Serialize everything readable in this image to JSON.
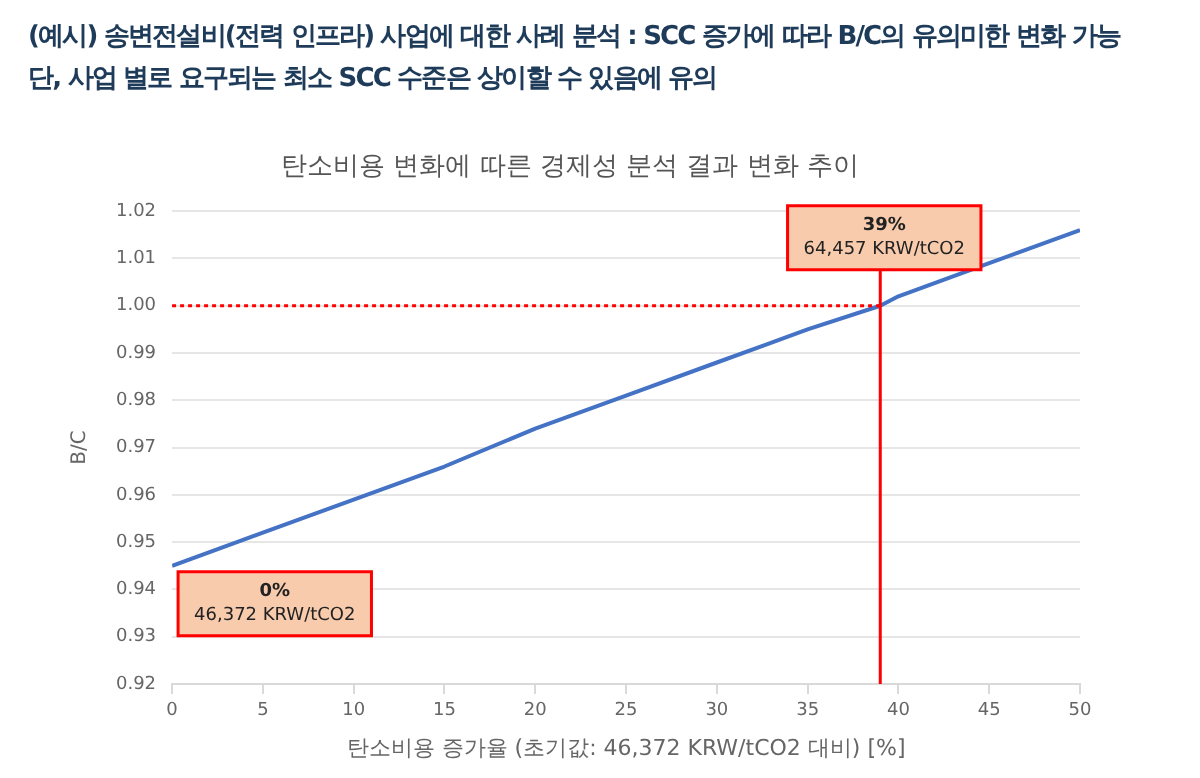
{
  "chart_data": {
    "type": "line",
    "title": "탄소비용 변화에 따른 경제성 분석 결과 변화 추이",
    "xlabel": "탄소비용 증가율 (초기값: 46,372 KRW/tCO2 대비) [%]",
    "ylabel": "B/C",
    "annotations": [
      "(예시) 송변전설비(전력 인프라) 사업에 대한 사례 분석 : SCC 증가에 따라 B/C의 유의미한 변화 가능",
      "단, 사업 별로 요구되는 최소 SCC 수준은 상이할 수 있음에 유의",
      {
        "text": "0%\n46,372 KRW/tCO2",
        "x": 0,
        "y": 0.945
      },
      {
        "text": "39%\n64,457 KRW/tCO2",
        "x": 39,
        "y": 1.0
      }
    ],
    "series": [
      {
        "color": "#4472c4",
        "x": [
          0,
          5,
          10,
          15,
          20,
          25,
          30,
          35,
          39,
          40,
          45,
          50
        ],
        "values": [
          0.945,
          0.952,
          0.959,
          0.966,
          0.974,
          0.981,
          0.988,
          0.995,
          1.0,
          1.002,
          1.009,
          1.016
        ]
      }
    ],
    "xlim": [
      0,
      50
    ],
    "xticks": [
      0,
      5,
      10,
      15,
      20,
      25,
      30,
      35,
      40,
      45,
      50
    ],
    "ylim": [
      0.92,
      1.02
    ],
    "yticks": [
      {
        "value": 0.92,
        "label": "0.92"
      },
      {
        "value": 0.93,
        "label": "0.93"
      },
      {
        "value": 0.94,
        "label": "0.94"
      },
      {
        "value": 0.95,
        "label": "0.95"
      },
      {
        "value": 0.96,
        "label": "0.96"
      },
      {
        "value": 0.97,
        "label": "0.97"
      },
      {
        "value": 0.98,
        "label": "0.98"
      },
      {
        "value": 0.99,
        "label": "0.99"
      },
      {
        "value": 1.0,
        "label": "1.00"
      },
      {
        "value": 1.01,
        "label": "1.01"
      },
      {
        "value": 1.02,
        "label": "1.02"
      }
    ],
    "ref_lines": [
      {
        "axis": "y",
        "value": 1.0,
        "color": "#ff0000",
        "line_style": "dotted"
      },
      {
        "axis": "x",
        "value": 39,
        "color": "#ff0000",
        "line_style": "solid"
      }
    ],
    "grid": "y",
    "legend": false,
    "marker": "none",
    "line_style": "solid"
  }
}
